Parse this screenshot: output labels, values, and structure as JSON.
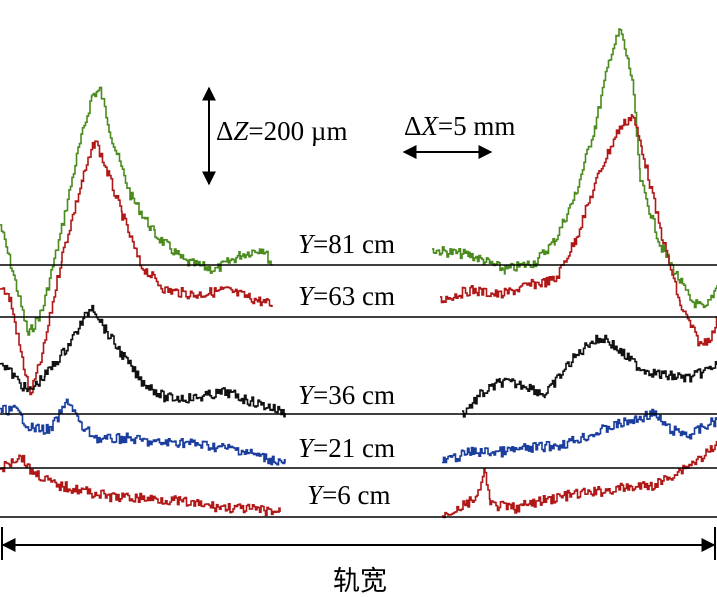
{
  "chart_data": {
    "type": "line",
    "xlabel": "轨宽",
    "scale_bars": {
      "z": {
        "symbol": "Δ",
        "var": "Z",
        "eq": "=200 µm"
      },
      "x": {
        "symbol": "Δ",
        "var": "X",
        "eq": "=5 mm"
      }
    },
    "baselines": [
      {
        "var": "Y",
        "eq": "=81 cm"
      },
      {
        "var": "Y",
        "eq": "=63 cm"
      },
      {
        "var": "Y",
        "eq": "=36 cm"
      },
      {
        "var": "Y",
        "eq": "=21 cm"
      },
      {
        "var": "Y",
        "eq": "=6 cm"
      }
    ],
    "colors": {
      "Y=81 cm": "#4a8a1e",
      "Y=63 cm": "#b01818",
      "Y=36 cm": "#111111",
      "Y=21 cm": "#1b3e9e",
      "Y=6 cm": "#b01818",
      "axis": "#000000"
    },
    "note": ""
  }
}
